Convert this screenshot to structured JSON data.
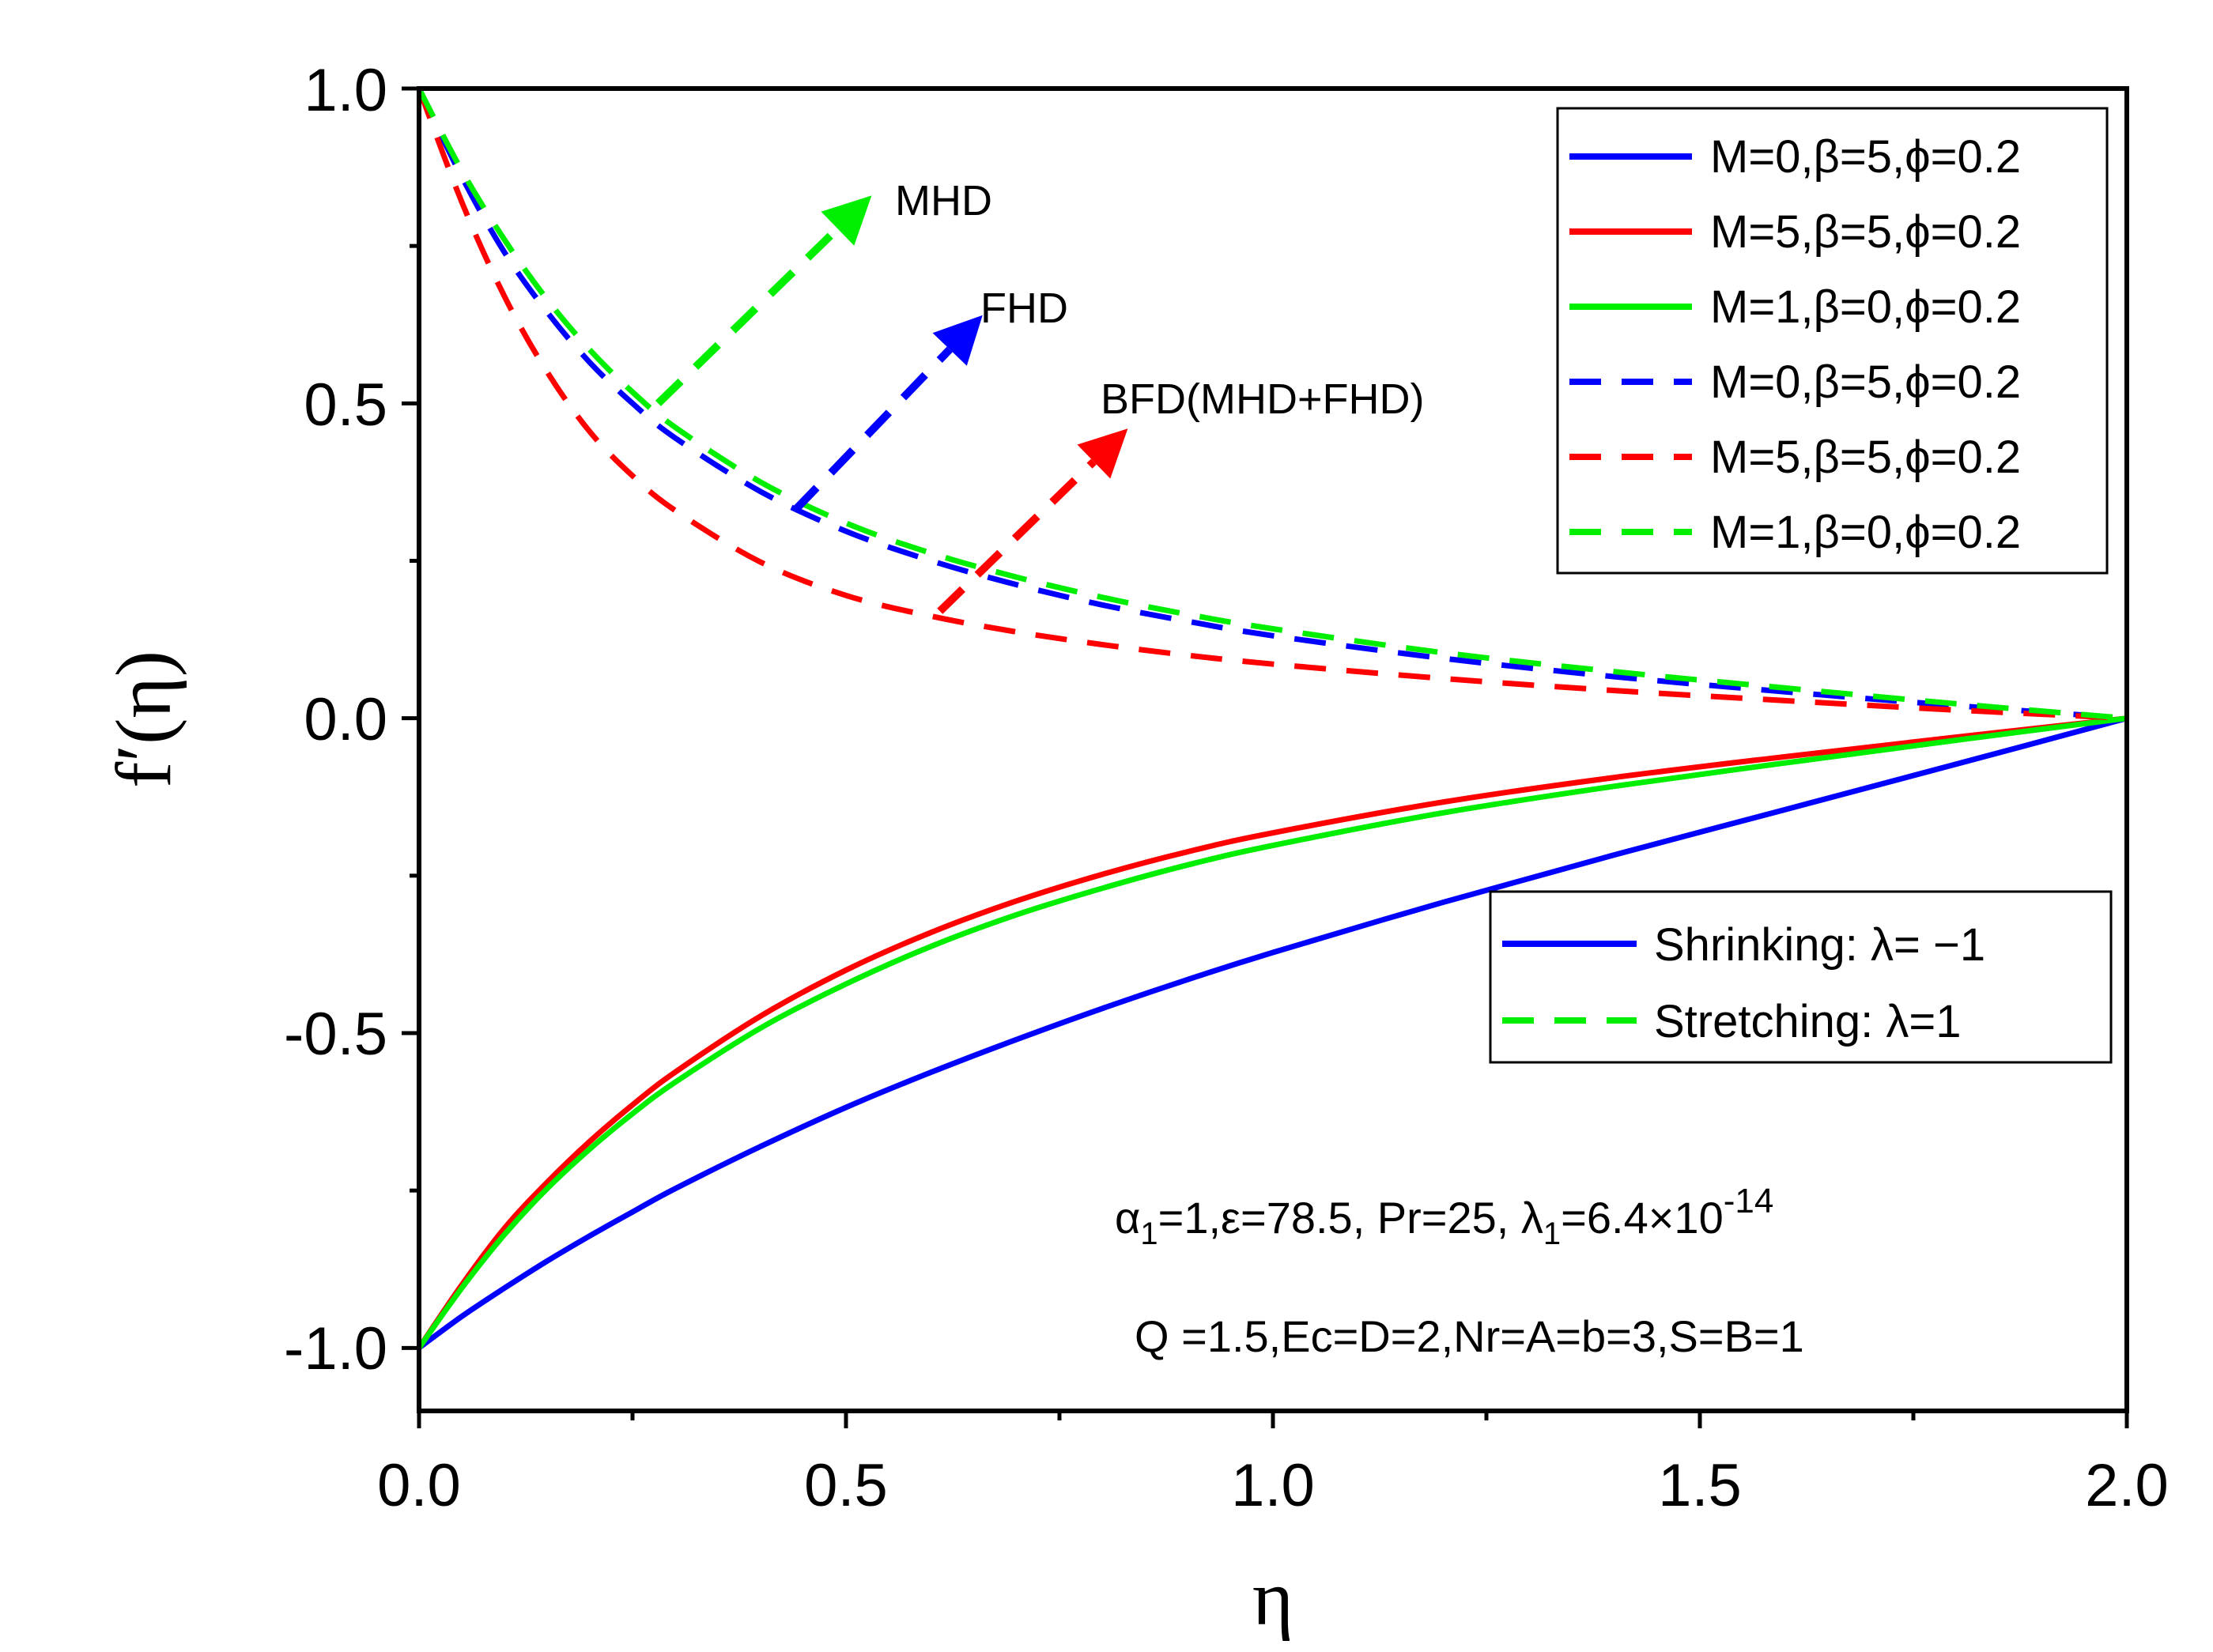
{
  "chart_data": {
    "type": "line",
    "xlabel": "η",
    "ylabel": "f′(η)",
    "xlim": [
      0,
      2
    ],
    "ylim": [
      -1.1,
      1.0
    ],
    "x_ticks": [
      "0.0",
      "0.5",
      "1.0",
      "1.5",
      "2.0"
    ],
    "y_ticks": [
      "-1.0",
      "-0.5",
      "0.0",
      "0.5",
      "1.0"
    ],
    "x_tick_values": [
      0,
      0.5,
      1.0,
      1.5,
      2.0
    ],
    "y_tick_values": [
      -1.0,
      -0.5,
      0.0,
      0.5,
      1.0
    ],
    "x": [
      0,
      0.05,
      0.1,
      0.15,
      0.2,
      0.25,
      0.3,
      0.4,
      0.5,
      0.6,
      0.7,
      0.8,
      0.9,
      1.0,
      1.2,
      1.4,
      1.6,
      1.8,
      2.0
    ],
    "series": [
      {
        "name": "M=0,β=5,ϕ=0.2",
        "group": "shrinking",
        "color": "#0000ff",
        "dash": "solid",
        "values": [
          -1.0,
          -0.95,
          -0.905,
          -0.862,
          -0.822,
          -0.784,
          -0.747,
          -0.68,
          -0.618,
          -0.562,
          -0.51,
          -0.461,
          -0.415,
          -0.372,
          -0.292,
          -0.217,
          -0.145,
          -0.073,
          0.0
        ]
      },
      {
        "name": "M=5,β=5,ϕ=0.2",
        "group": "shrinking",
        "color": "#ff0000",
        "dash": "solid",
        "values": [
          -1.0,
          -0.9,
          -0.81,
          -0.737,
          -0.672,
          -0.614,
          -0.562,
          -0.473,
          -0.4,
          -0.34,
          -0.29,
          -0.248,
          -0.212,
          -0.182,
          -0.133,
          -0.094,
          -0.061,
          -0.03,
          0.0
        ]
      },
      {
        "name": "M=1,β=0,ϕ=0.2",
        "group": "shrinking",
        "color": "#00ee00",
        "dash": "solid",
        "values": [
          -1.0,
          -0.905,
          -0.82,
          -0.747,
          -0.684,
          -0.628,
          -0.578,
          -0.492,
          -0.422,
          -0.362,
          -0.312,
          -0.27,
          -0.233,
          -0.202,
          -0.15,
          -0.108,
          -0.071,
          -0.035,
          0.0
        ]
      },
      {
        "name": "M=0,β=5,ϕ=0.2",
        "group": "stretching",
        "color": "#0000ff",
        "dash": "dashed",
        "values": [
          1.0,
          0.86,
          0.74,
          0.645,
          0.565,
          0.5,
          0.445,
          0.36,
          0.297,
          0.25,
          0.212,
          0.18,
          0.154,
          0.131,
          0.095,
          0.066,
          0.042,
          0.02,
          0.0
        ]
      },
      {
        "name": "M=5,β=5,ϕ=0.2",
        "group": "stretching",
        "color": "#ff0000",
        "dash": "dashed",
        "values": [
          1.0,
          0.82,
          0.67,
          0.55,
          0.455,
          0.385,
          0.33,
          0.248,
          0.195,
          0.162,
          0.137,
          0.117,
          0.1,
          0.086,
          0.063,
          0.044,
          0.028,
          0.013,
          0.0
        ]
      },
      {
        "name": "M=1,β=0,ϕ=0.2",
        "group": "stretching",
        "color": "#00ee00",
        "dash": "dashed",
        "values": [
          1.0,
          0.87,
          0.76,
          0.665,
          0.585,
          0.518,
          0.462,
          0.375,
          0.31,
          0.262,
          0.224,
          0.192,
          0.165,
          0.142,
          0.104,
          0.074,
          0.048,
          0.023,
          0.0
        ]
      }
    ],
    "legend_series": [
      "M=0,β=5,ϕ=0.2",
      "M=5,β=5,ϕ=0.2",
      "M=1,β=0,ϕ=0.2",
      "M=0,β=5,ϕ=0.2",
      "M=5,β=5,ϕ=0.2",
      "M=1,β=0,ϕ=0.2"
    ],
    "legend_placement": "top-right",
    "legend2": {
      "placement": "center-right",
      "entries": [
        {
          "label": "Shrinking: λ= −1",
          "color": "#0000ff",
          "dash": "solid"
        },
        {
          "label": "Stretching: λ=1",
          "color": "#00ee00",
          "dash": "dashed"
        }
      ]
    },
    "annotations": [
      {
        "text": "MHD",
        "color": "#00ee00",
        "from": [
          0.28,
          0.5
        ],
        "to": [
          0.53,
          0.83
        ]
      },
      {
        "text": "FHD",
        "color": "#0000ff",
        "from": [
          0.44,
          0.33
        ],
        "to": [
          0.66,
          0.64
        ]
      },
      {
        "text": "BFD(MHD+FHD)",
        "color": "#ff0000",
        "from": [
          0.61,
          0.17
        ],
        "to": [
          0.83,
          0.46
        ]
      }
    ],
    "parameter_notes": {
      "line1": {
        "p1_sym": "α",
        "p1_sub": "1",
        "p1_rest": "=1,ε=78.5, Pr=25, ",
        "p2_sym": "λ",
        "p2_sub": "1",
        "p2_rest": "=6.4×10",
        "p2_exp": "-14"
      },
      "line2": "Q =1.5,Ec=D=2,Nr=A=b=3,S=B=1"
    }
  }
}
